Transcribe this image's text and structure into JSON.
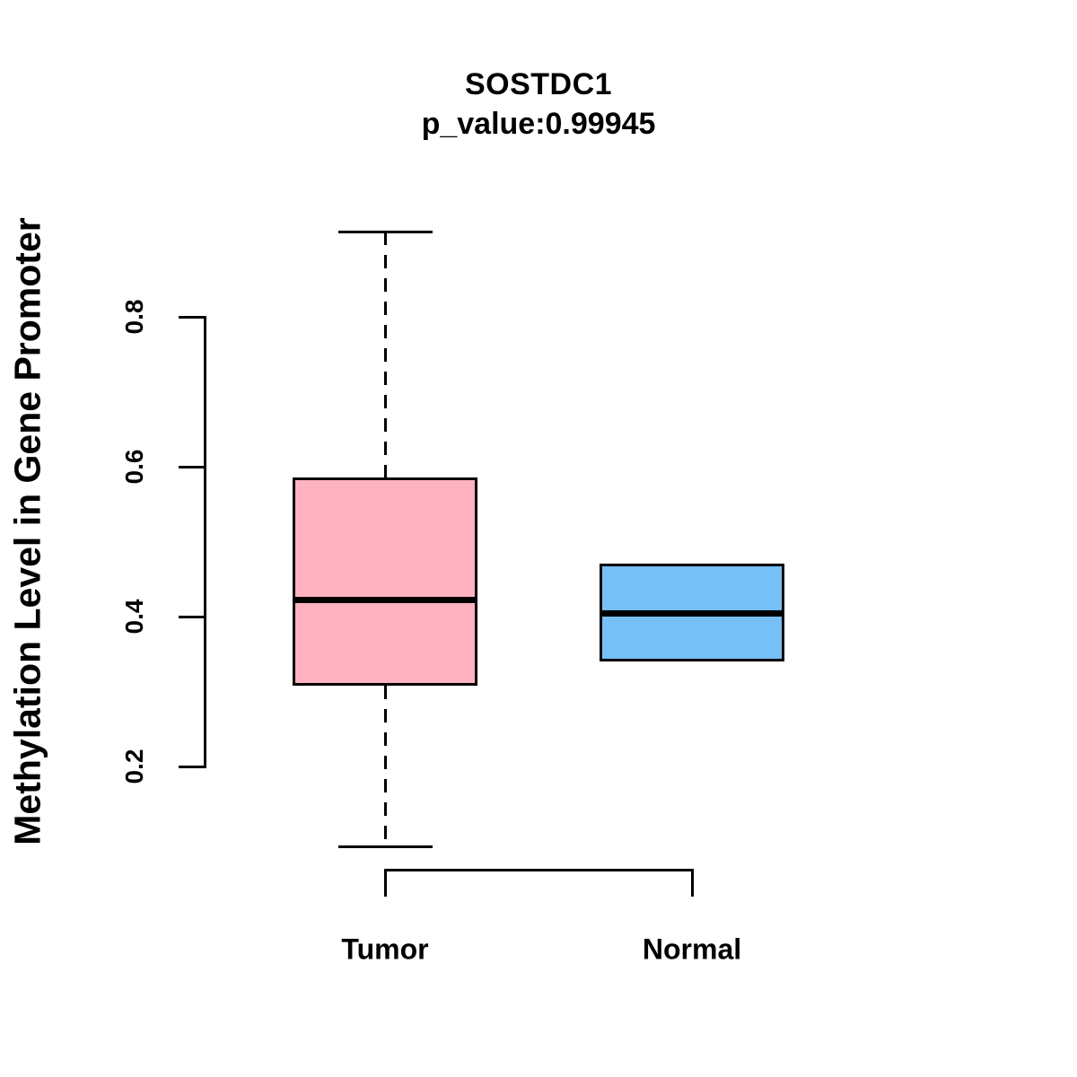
{
  "figure": {
    "background": "#FFFFFF",
    "text_color": "#000000"
  },
  "chart_data": {
    "type": "boxplot",
    "title": "SOSTDC1",
    "subtitle": "p_value:0.99945",
    "ylabel": "Methylation Level in Gene Promoter",
    "xlabel": "",
    "categories": [
      "Tumor",
      "Normal"
    ],
    "y_ticks": [
      0.2,
      0.4,
      0.6,
      0.8
    ],
    "y_tick_labels": [
      "0.2",
      "0.4",
      "0.6",
      "0.8"
    ],
    "ylim": [
      0.06,
      0.95
    ],
    "grid": false,
    "legend": "none",
    "axis_color": "#000000",
    "series": [
      {
        "name": "Tumor",
        "color": "#FFB2C1",
        "border_color": "#000000",
        "whisker_low": 0.093,
        "q1": 0.308,
        "median": 0.422,
        "q3": 0.585,
        "whisker_high": 0.913
      },
      {
        "name": "Normal",
        "color": "#77BFF7",
        "border_color": "#000000",
        "q1": 0.34,
        "median": 0.405,
        "q3": 0.47
      }
    ]
  }
}
